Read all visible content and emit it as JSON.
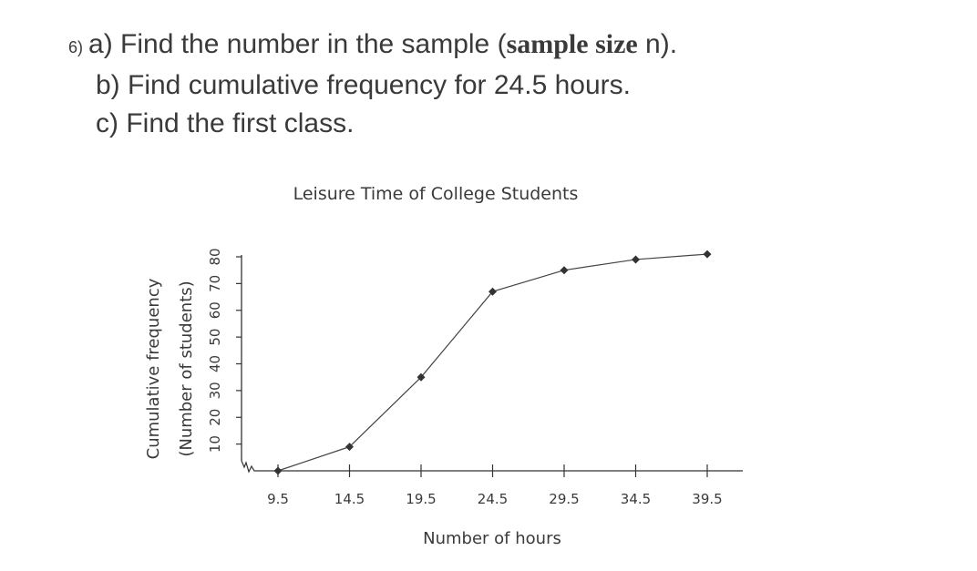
{
  "question": {
    "number": "6)",
    "part_a_prefix": "a) Find the number in the sample (",
    "part_a_bold": "sample size",
    "part_a_suffix": " n).",
    "part_b": "b) Find cumulative frequency for 24.5 hours.",
    "part_c": "c) Find the first class."
  },
  "chart_data": {
    "type": "line",
    "title": "Leisure Time of College Students",
    "xlabel": "Number of hours",
    "ylabel_line1": "Cumulative frequency",
    "ylabel_line2": "(Number of students)",
    "x_ticks": [
      "9.5",
      "14.5",
      "19.5",
      "24.5",
      "29.5",
      "34.5",
      "39.5"
    ],
    "y_ticks": [
      "10",
      "20",
      "30",
      "40",
      "50",
      "60",
      "70",
      "80"
    ],
    "ylim": [
      0,
      80
    ],
    "xlim": [
      9.5,
      39.5
    ],
    "series": [
      {
        "x": [
          9.5,
          14.5,
          19.5,
          24.5,
          29.5,
          34.5,
          39.5
        ],
        "y": [
          0,
          9,
          35,
          67,
          75,
          79,
          81
        ]
      }
    ],
    "axis_break": true,
    "grid": false
  }
}
